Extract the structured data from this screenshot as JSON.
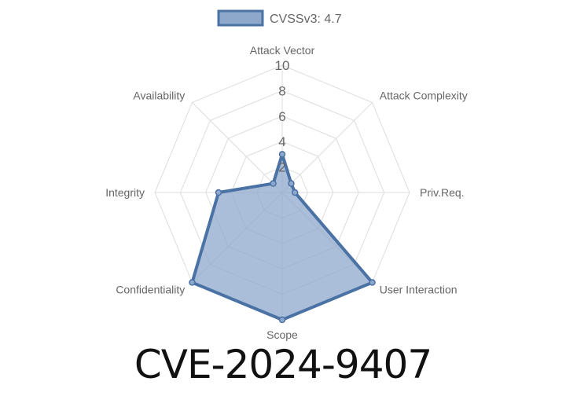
{
  "chart_data": {
    "type": "radar",
    "axes": [
      "Attack Vector",
      "Attack Complexity",
      "Priv.Req.",
      "User Interaction",
      "Scope",
      "Confidentiality",
      "Integrity",
      "Availability"
    ],
    "rlim": [
      0,
      10
    ],
    "ticks": [
      2,
      4,
      6,
      8,
      10
    ],
    "tick_labels": [
      "2",
      "4",
      "6",
      "8",
      "10"
    ],
    "series": [
      {
        "name": "CVSSv3: 4.7",
        "values": [
          3.0,
          1.0,
          1.0,
          10.0,
          10.0,
          10.0,
          5.0,
          1.0
        ],
        "stroke": "#4a72a5",
        "fill": "#8ea8cc"
      }
    ],
    "grid": true,
    "legend_position": "top"
  },
  "title": "CVE-2024-9407"
}
